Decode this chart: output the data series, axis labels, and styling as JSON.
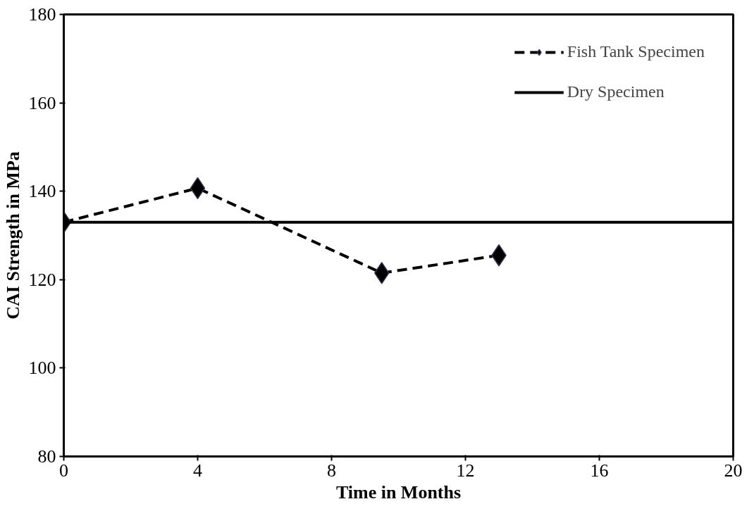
{
  "chart_data": {
    "type": "line",
    "xlabel": "Time in Months",
    "ylabel": "CAI Strength in MPa",
    "xlim": [
      0,
      20
    ],
    "xticks": [
      0,
      4,
      8,
      12,
      16,
      20
    ],
    "ylim": [
      80,
      180
    ],
    "yticks": [
      80,
      100,
      120,
      140,
      160,
      180
    ],
    "grid": false,
    "legend": "top right",
    "series": [
      {
        "name": "Fish Tank Specimen",
        "color": "#000000",
        "x": [
          0,
          4,
          9.5,
          13
        ],
        "values": [
          133,
          140.7,
          121.5,
          125.5
        ],
        "line_style": "dashed",
        "marker": "diamond"
      },
      {
        "name": "Dry Specimen",
        "color": "#000000",
        "x": [
          0,
          20
        ],
        "values": [
          133,
          133
        ],
        "line_style": "solid",
        "marker": "none"
      }
    ]
  }
}
